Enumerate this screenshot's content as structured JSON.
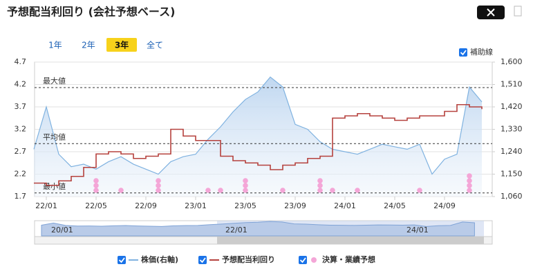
{
  "header": {
    "title": "予想配当利回り (会社予想ベース)",
    "tabs": [
      "1年",
      "2年",
      "3年",
      "全て"
    ],
    "aux_toggle": "補助線"
  },
  "chart_data": {
    "type": "line",
    "categories": [
      "21/12",
      "22/01",
      "22/02",
      "22/03",
      "22/04",
      "22/05",
      "22/06",
      "22/07",
      "22/08",
      "22/09",
      "22/10",
      "22/11",
      "22/12",
      "23/01",
      "23/02",
      "23/03",
      "23/04",
      "23/05",
      "23/06",
      "23/07",
      "23/08",
      "23/09",
      "23/10",
      "23/11",
      "23/12",
      "24/01",
      "24/02",
      "24/03",
      "24/04",
      "24/05",
      "24/06",
      "24/07",
      "24/08",
      "24/09",
      "24/10",
      "24/11",
      "24/12"
    ],
    "xticks": [
      "22/01",
      "22/05",
      "22/09",
      "23/01",
      "23/05",
      "23/09",
      "24/01",
      "24/05",
      "24/09"
    ],
    "ylim": [
      1.7,
      4.7
    ],
    "yticks": [
      1.7,
      2.2,
      2.7,
      3.2,
      3.7,
      4.2,
      4.7
    ],
    "y2lim": [
      1060,
      1600
    ],
    "y2ticks": [
      {
        "value": 1060,
        "label": "1,060"
      },
      {
        "value": 1150,
        "label": "1,150"
      },
      {
        "value": 1240,
        "label": "1,240"
      },
      {
        "value": 1330,
        "label": "1,330"
      },
      {
        "value": 1420,
        "label": "1,420"
      },
      {
        "value": 1510,
        "label": "1,510"
      },
      {
        "value": 1600,
        "label": "1,600"
      }
    ],
    "series": [
      {
        "name": "株価(右軸)",
        "color": "#7fb2e0",
        "axis": "y2",
        "values": [
          1250,
          1420,
          1230,
          1180,
          1190,
          1170,
          1200,
          1220,
          1190,
          1170,
          1150,
          1200,
          1220,
          1230,
          1290,
          1340,
          1400,
          1450,
          1480,
          1540,
          1500,
          1350,
          1330,
          1280,
          1250,
          1240,
          1230,
          1250,
          1270,
          1260,
          1250,
          1270,
          1150,
          1210,
          1230,
          1500,
          1440
        ]
      },
      {
        "name": "予想配当利回り",
        "color": "#b5413d",
        "values": [
          2.0,
          1.95,
          2.05,
          2.15,
          2.35,
          2.65,
          2.7,
          2.65,
          2.55,
          2.6,
          2.65,
          3.2,
          3.05,
          2.95,
          2.95,
          2.6,
          2.5,
          2.45,
          2.4,
          2.3,
          2.4,
          2.45,
          2.55,
          2.6,
          3.45,
          3.5,
          3.55,
          3.5,
          3.45,
          3.4,
          3.45,
          3.5,
          3.5,
          3.6,
          3.75,
          3.7,
          3.65
        ]
      }
    ],
    "events": {
      "name": "決算・業績予想",
      "color": "#f4a6d7",
      "x": [
        "22/05",
        "22/07",
        "22/10",
        "23/02",
        "23/03",
        "23/05",
        "23/08",
        "23/11",
        "23/12",
        "24/02",
        "24/07",
        "24/11"
      ],
      "counts": [
        3,
        1,
        3,
        1,
        1,
        3,
        1,
        3,
        1,
        1,
        1,
        4
      ]
    },
    "ref_lines": [
      {
        "label": "最大値",
        "value": 4.13
      },
      {
        "label": "平均値",
        "value": 2.88
      },
      {
        "label": "最小値",
        "value": 1.78
      }
    ],
    "navigator_labels": [
      "20/01",
      "22/01",
      "24/01"
    ]
  }
}
